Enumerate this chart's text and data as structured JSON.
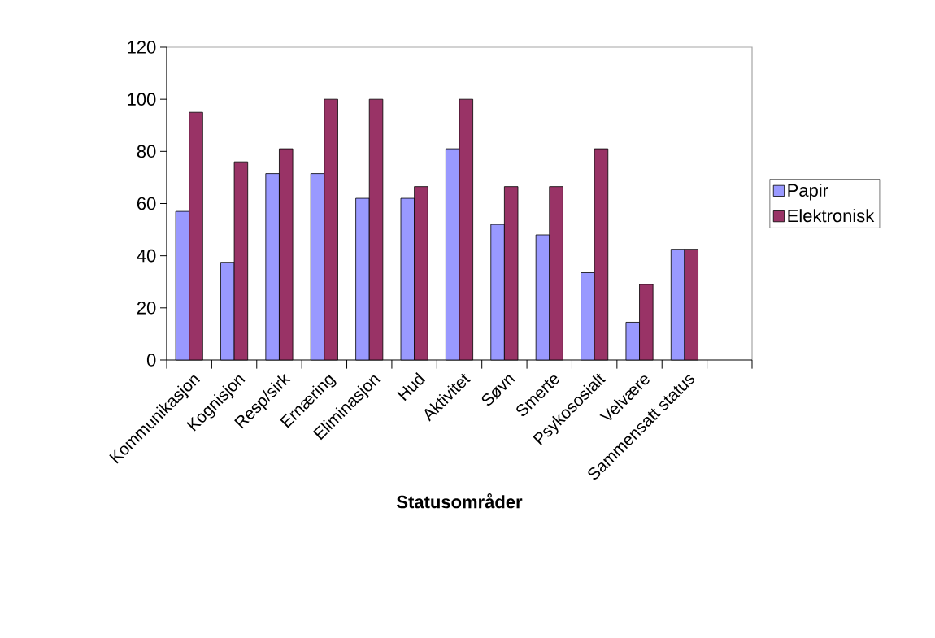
{
  "chart_data": {
    "type": "bar",
    "xlabel": "Statusområder",
    "categories": [
      "Kommunikasjon",
      "Kognisjon",
      "Resp/sirk",
      "Ernæring",
      "Eliminasjon",
      "Hud",
      "Aktivitet",
      "Søvn",
      "Smerte",
      "Psykososialt",
      "Velvære",
      "Sammensatt status",
      null
    ],
    "series": [
      {
        "name": "Papir",
        "color": "#9999ff",
        "values": [
          57,
          37.5,
          71.5,
          71.5,
          62,
          62,
          81,
          52,
          48,
          33.5,
          14.5,
          42.5,
          null
        ]
      },
      {
        "name": "Elektronisk",
        "color": "#993366",
        "values": [
          95,
          76,
          81,
          100,
          100,
          66.5,
          100,
          66.5,
          66.5,
          81,
          29,
          42.5,
          null
        ]
      }
    ],
    "ylim": [
      0,
      120
    ],
    "yticks": [
      0,
      20,
      40,
      60,
      80,
      100,
      120
    ],
    "grid": false,
    "legend": "right"
  }
}
